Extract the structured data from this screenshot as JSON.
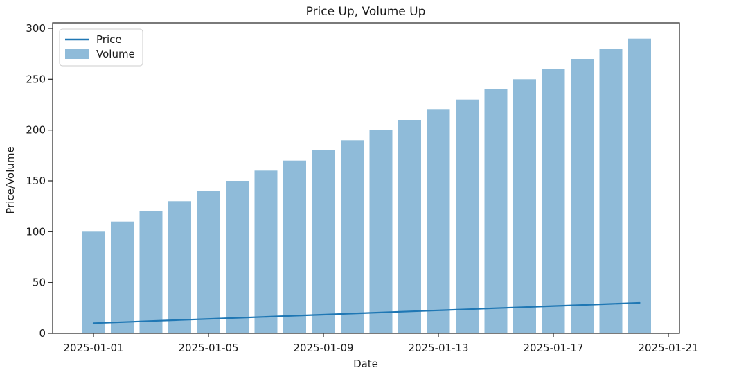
{
  "figure": {
    "title": "Price Up, Volume Up",
    "xlabel": "Date",
    "ylabel": "Price/Volume"
  },
  "chart_data": {
    "type": "bar+line",
    "title": "Price Up, Volume Up",
    "xlabel": "Date",
    "ylabel": "Price/Volume",
    "categories": [
      "2025-01-01",
      "2025-01-02",
      "2025-01-03",
      "2025-01-04",
      "2025-01-05",
      "2025-01-06",
      "2025-01-07",
      "2025-01-08",
      "2025-01-09",
      "2025-01-10",
      "2025-01-11",
      "2025-01-12",
      "2025-01-13",
      "2025-01-14",
      "2025-01-15",
      "2025-01-16",
      "2025-01-17",
      "2025-01-18",
      "2025-01-19",
      "2025-01-20"
    ],
    "series": [
      {
        "name": "Price",
        "type": "line",
        "color": "#1f77b4",
        "values": [
          10.0,
          11.05,
          12.11,
          13.16,
          14.21,
          15.26,
          16.32,
          17.37,
          18.42,
          19.47,
          20.53,
          21.58,
          22.63,
          23.68,
          24.74,
          25.79,
          26.84,
          27.89,
          28.95,
          30.0
        ]
      },
      {
        "name": "Volume",
        "type": "bar",
        "color": "#8fbbd9",
        "values": [
          100,
          110,
          120,
          130,
          140,
          150,
          160,
          170,
          180,
          190,
          200,
          210,
          220,
          230,
          240,
          250,
          260,
          270,
          280,
          290
        ]
      }
    ],
    "xticks": [
      {
        "label": "2025-01-01",
        "index": 0
      },
      {
        "label": "2025-01-05",
        "index": 4
      },
      {
        "label": "2025-01-09",
        "index": 8
      },
      {
        "label": "2025-01-13",
        "index": 12
      },
      {
        "label": "2025-01-17",
        "index": 16
      },
      {
        "label": "2025-01-21",
        "index": 20
      }
    ],
    "yticks": [
      0,
      50,
      100,
      150,
      200,
      250,
      300
    ],
    "ylim": [
      0,
      305
    ],
    "grid": false,
    "legend_position": "upper left",
    "spine_color": "#333333",
    "tick_color": "#333333"
  }
}
